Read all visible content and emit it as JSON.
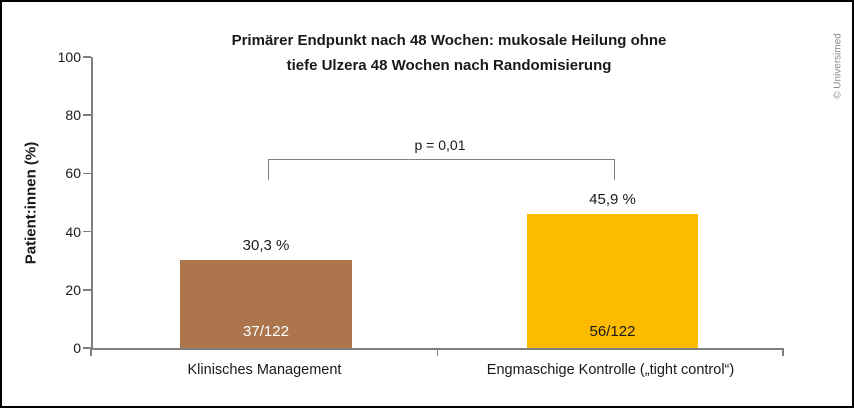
{
  "frame": {
    "copyright": "© Universimed"
  },
  "colors": {
    "axis": "#7f7f7f",
    "text": "#1a1a1a",
    "copyright_gray": "#8c8c8c",
    "bar_brown": "#ad754e",
    "bar_yellow": "#fcba00"
  },
  "chart_data": {
    "type": "bar",
    "title": "Primärer Endpunkt nach 48 Wochen: mukosale Heilung ohne tiefe Ulzera 48 Wochen nach Randomisierung",
    "title_line1": "Primärer Endpunkt nach 48 Wochen: mukosale Heilung ohne",
    "title_line2": "tiefe Ulzera 48 Wochen nach Randomisierung",
    "xlabel": "",
    "ylabel": "Patient:innen (%)",
    "ylim": [
      0,
      100
    ],
    "yticks": [
      0,
      20,
      40,
      60,
      80,
      100
    ],
    "grid": false,
    "legend": "none",
    "categories": [
      "Klinisches Management",
      "Engmaschige Kontrolle („tight control“)"
    ],
    "values": [
      30.3,
      45.9
    ],
    "value_labels": [
      "30,3 %",
      "45,9 %"
    ],
    "count_labels": [
      "37/122",
      "56/122"
    ],
    "bar_colors": [
      "#ad754e",
      "#fcba00"
    ],
    "count_label_colors": [
      "#ffffff",
      "#1a1a1a"
    ],
    "annotation": "p = 0,01"
  }
}
